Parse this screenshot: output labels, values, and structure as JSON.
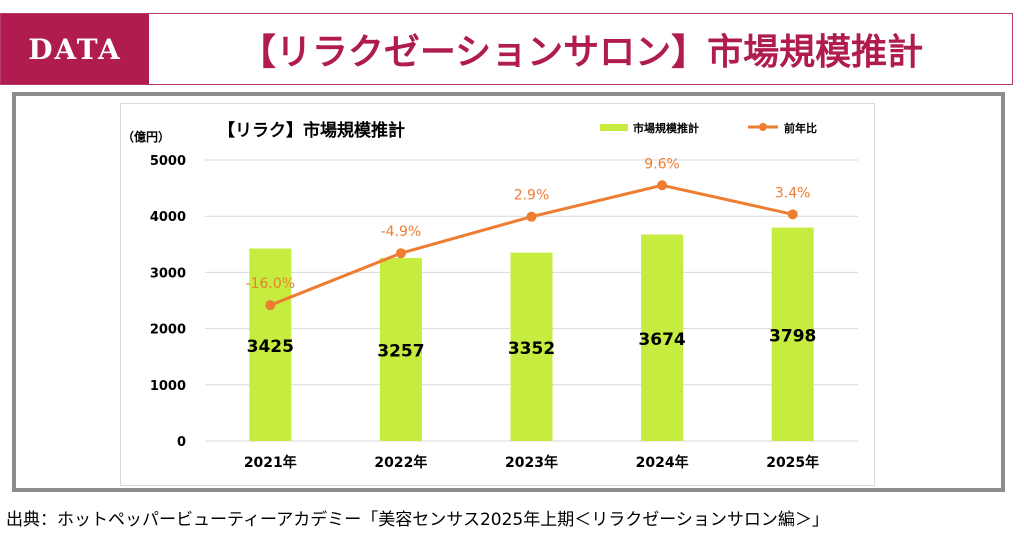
{
  "header": {
    "tag": "DATA",
    "title": "【リラクゼーションサロン】市場規模推計"
  },
  "source": "出典：ホットペッパービューティーアカデミー「美容センサス2025年上期＜リラクゼーションサロン編＞」",
  "chart_data": {
    "type": "bar",
    "title": "【リラク】市場規模推計",
    "y_unit_label": "（億円）",
    "categories": [
      "2021年",
      "2022年",
      "2023年",
      "2024年",
      "2025年"
    ],
    "series": [
      {
        "name": "市場規模推計",
        "type": "bar",
        "values": [
          3425,
          3257,
          3352,
          3674,
          3798
        ],
        "color": "#c5ec3e"
      },
      {
        "name": "前年比",
        "type": "line",
        "values": [
          -16.0,
          -4.9,
          2.9,
          9.6,
          3.4
        ],
        "labels": [
          "-16.0%",
          "-4.9%",
          "2.9%",
          "9.6%",
          "3.4%"
        ],
        "color": "#ed7d31"
      }
    ],
    "ylim": [
      0,
      5000
    ],
    "yticks": [
      0,
      1000,
      2000,
      3000,
      4000,
      5000
    ],
    "grid": true,
    "legend": "top-right"
  }
}
